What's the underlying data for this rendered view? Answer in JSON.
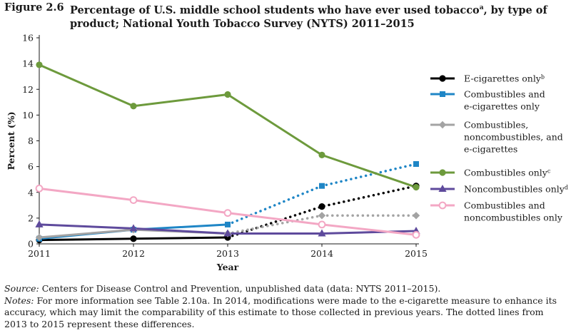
{
  "figure": {
    "label": "Figure 2.6",
    "title_main": "Percentage of U.S. middle school students who have ever used tobacco",
    "title_sup": "a",
    "title_rest": ", by type of product; National Youth Tobacco Survey (NYTS) 2011–2015"
  },
  "source": {
    "label": "Source:",
    "text": " Centers for Disease Control and Prevention, unpublished data (data: NYTS 2011–2015)."
  },
  "notes": {
    "label": "Notes:",
    "text": " For more information see Table 2.10a. In 2014, modifications were made to the e-cigarette measure to enhance its accuracy, which may limit the comparability of this estimate to those collected in previous years. The dotted lines from 2013 to 2015 represent these differences."
  },
  "chart_data": {
    "type": "line",
    "x": [
      2011,
      2012,
      2013,
      2014,
      2015
    ],
    "xlabel": "Year",
    "ylabel": "Percent (%)",
    "ylim": [
      0,
      16
    ],
    "yticks": [
      0,
      2,
      4,
      6,
      8,
      10,
      12,
      14,
      16
    ],
    "grid": false,
    "legend_position": "right",
    "dotted_from": 2013,
    "series": [
      {
        "name": "E-cigarettes only",
        "sup": "b",
        "color": "#000000",
        "marker": "circle",
        "values": [
          0.3,
          0.4,
          0.5,
          2.9,
          4.5
        ]
      },
      {
        "name": "Combustibles and e-cigarettes only",
        "sup": "",
        "color": "#1f86c6",
        "marker": "square",
        "values": [
          0.4,
          1.1,
          1.5,
          4.5,
          6.2
        ]
      },
      {
        "name": "Combustibles, noncombustibles, and e-cigarettes",
        "sup": "",
        "color": "#a3a3a3",
        "marker": "diamond",
        "values": [
          0.5,
          1.1,
          0.8,
          2.2,
          2.2
        ]
      },
      {
        "name": "Combustibles only",
        "sup": "c",
        "color": "#6d9a3c",
        "marker": "circle",
        "values": [
          13.9,
          10.7,
          11.6,
          6.9,
          4.4
        ]
      },
      {
        "name": "Noncombustibles only",
        "sup": "d",
        "color": "#5e4a9c",
        "marker": "triangle",
        "values": [
          1.5,
          1.2,
          0.8,
          0.8,
          1.0
        ]
      },
      {
        "name": "Combustibles and noncombustibles only",
        "sup": "",
        "color": "#f3a7c4",
        "marker": "open-circle",
        "values": [
          4.3,
          3.4,
          2.4,
          1.5,
          0.7
        ]
      }
    ],
    "legend_lines": [
      [
        "E-cigarettes only"
      ],
      [
        "Combustibles and",
        "e-cigarettes only"
      ],
      [
        "Combustibles,",
        "noncombustibles, and",
        "e-cigarettes"
      ],
      [
        "Combustibles only"
      ],
      [
        "Noncombustibles only"
      ],
      [
        "Combustibles and",
        "noncombustibles only"
      ]
    ]
  }
}
